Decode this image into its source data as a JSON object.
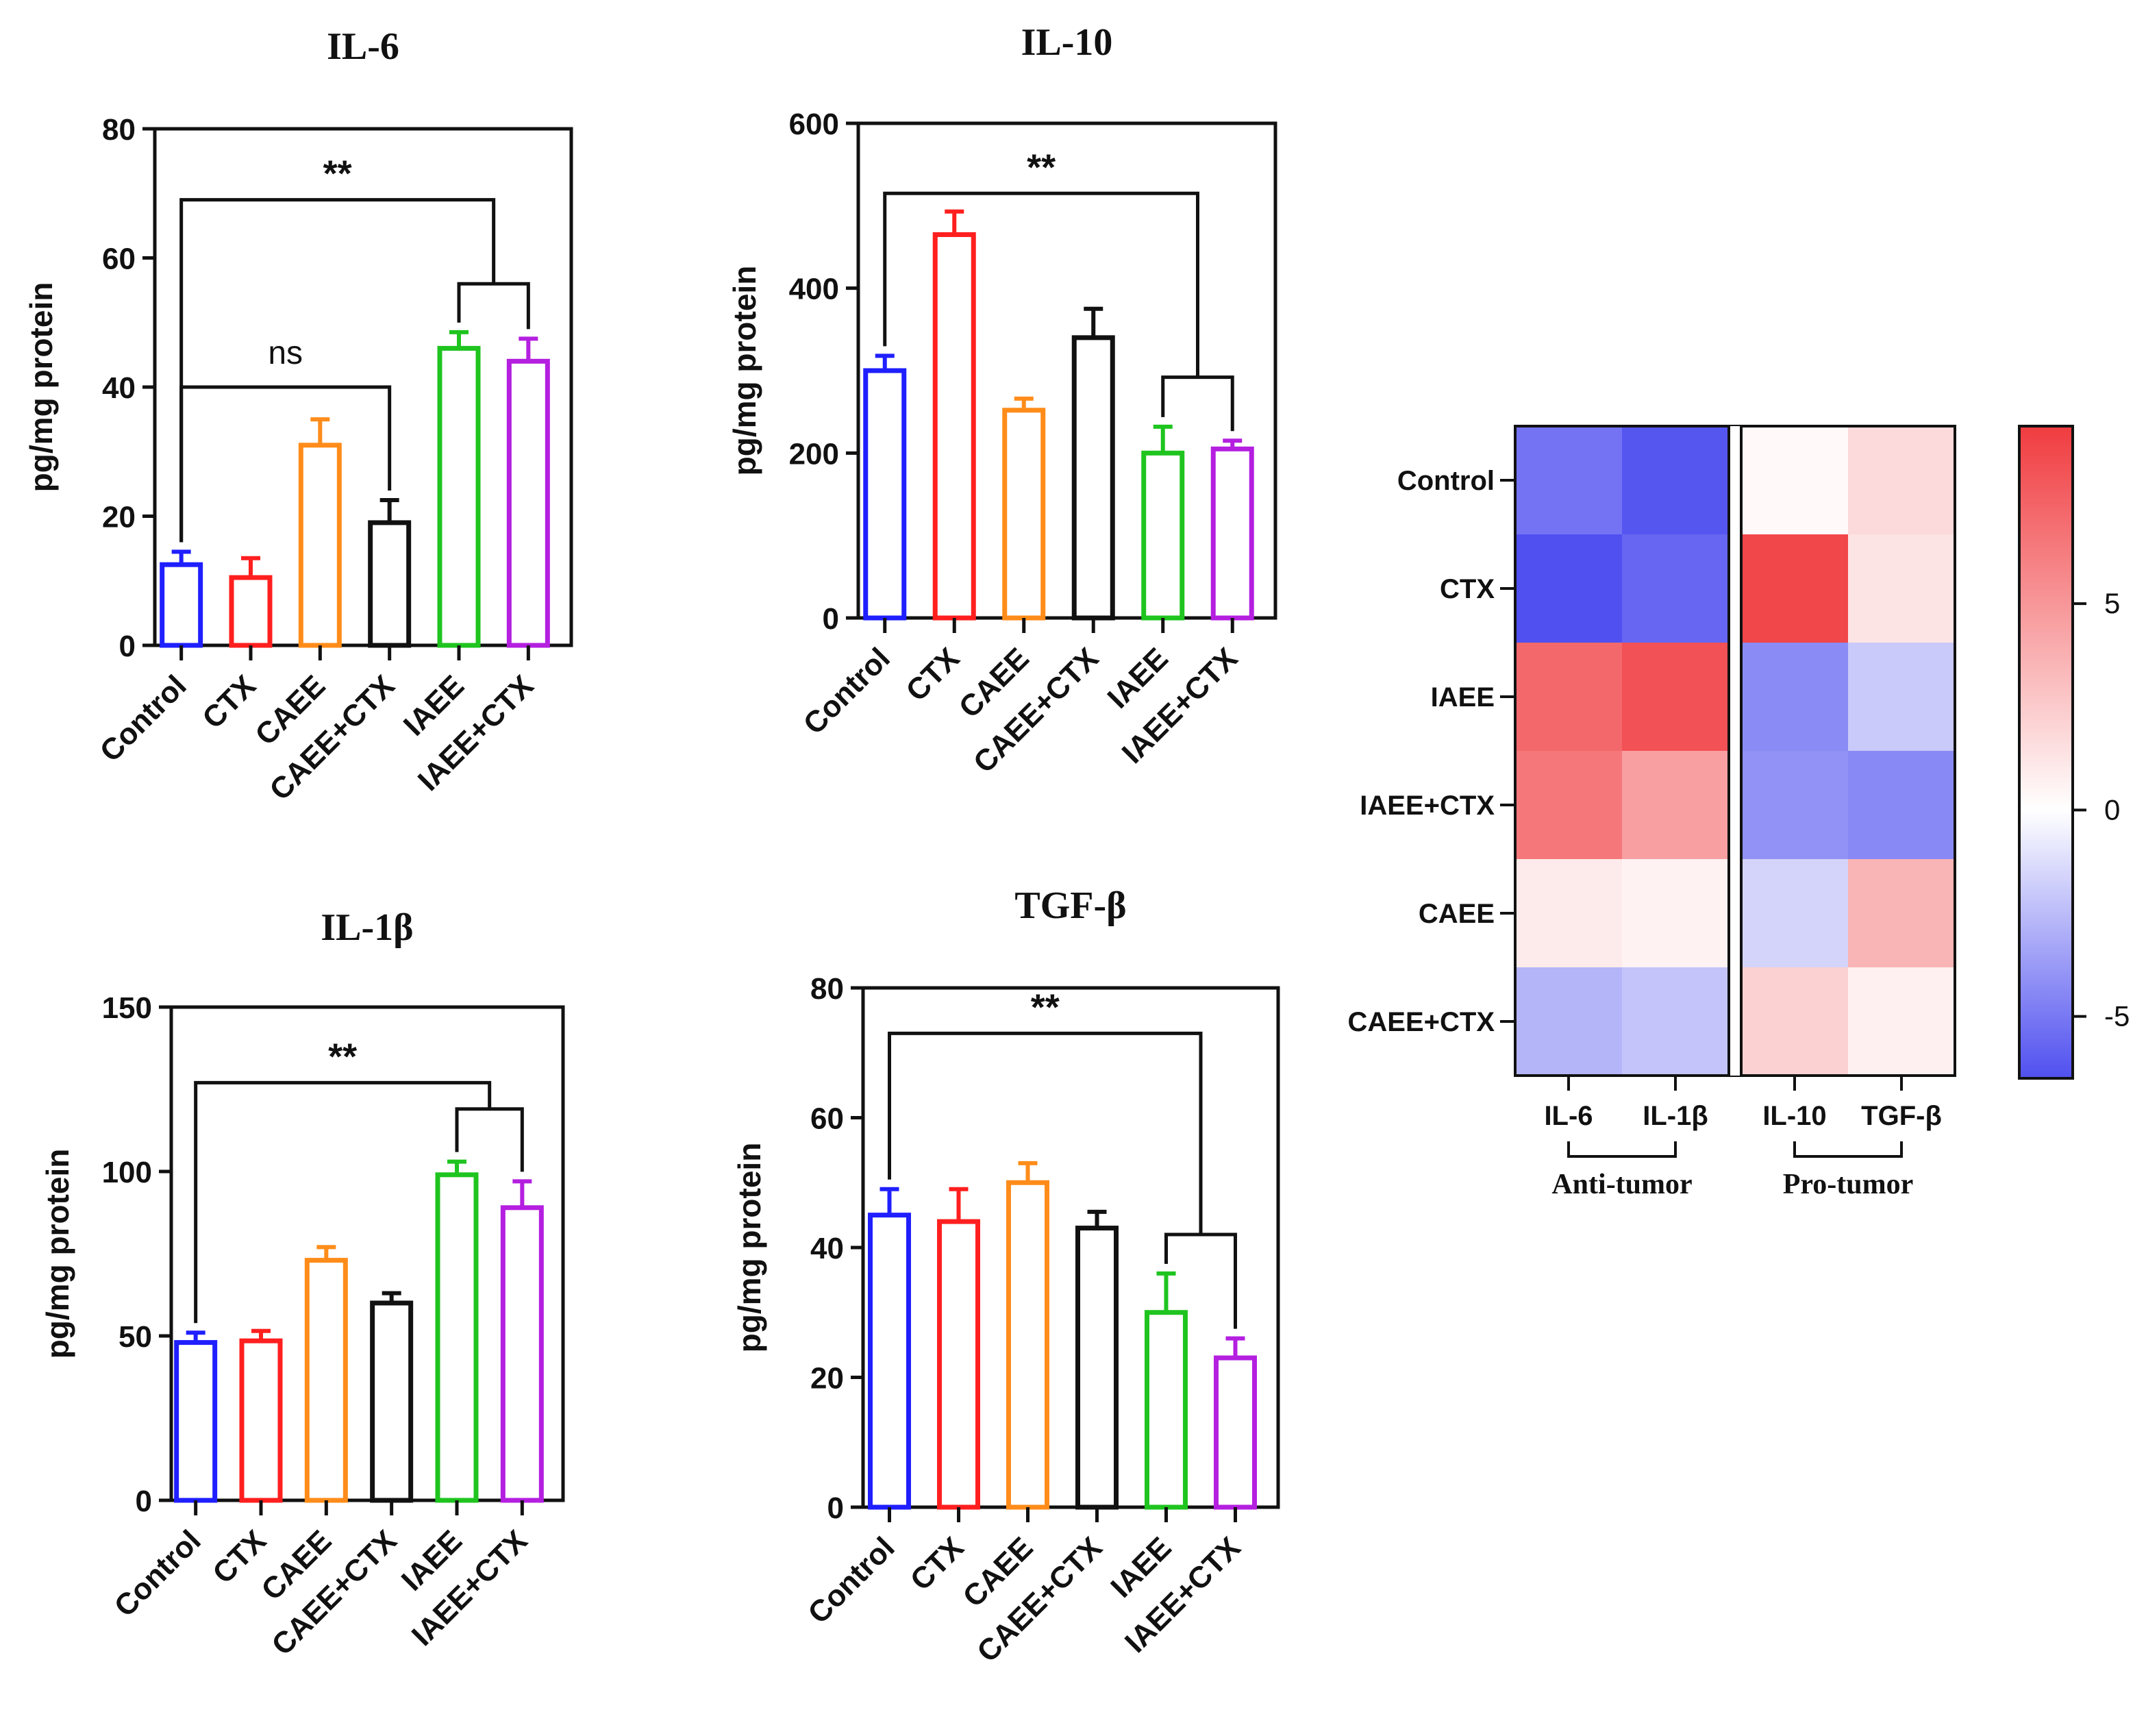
{
  "colors": {
    "Control": "#1f1fff",
    "CTX": "#ff1f1f",
    "CAEE": "#ff8c1a",
    "CAEE+CTX": "#111111",
    "IAEE": "#1fc41f",
    "IAEE+CTX": "#b41fe0"
  },
  "chart_data": [
    {
      "id": "il6",
      "type": "bar",
      "title": "IL-6",
      "ylabel": "pg/mg protein",
      "xlabel": "",
      "categories": [
        "Control",
        "CTX",
        "CAEE",
        "CAEE+CTX",
        "IAEE",
        "IAEE+CTX"
      ],
      "values": [
        12.5,
        10.5,
        31,
        19,
        46,
        44
      ],
      "errors": [
        2,
        3,
        4,
        3.5,
        2.5,
        3.5
      ],
      "ylim": [
        0,
        80
      ],
      "yticks": [
        0,
        20,
        40,
        60,
        80
      ],
      "annotations": [
        {
          "text": "**",
          "label": "significance"
        },
        {
          "text": "ns",
          "label": "not-significant"
        }
      ]
    },
    {
      "id": "il10",
      "type": "bar",
      "title": "IL-10",
      "ylabel": "pg/mg protein",
      "xlabel": "",
      "categories": [
        "Control",
        "CTX",
        "CAEE",
        "CAEE+CTX",
        "IAEE",
        "IAEE+CTX"
      ],
      "values": [
        300,
        465,
        252,
        340,
        200,
        205
      ],
      "errors": [
        18,
        28,
        14,
        35,
        32,
        10
      ],
      "ylim": [
        0,
        600
      ],
      "yticks": [
        0,
        200,
        400,
        600
      ],
      "annotations": [
        {
          "text": "**",
          "label": "significance"
        }
      ]
    },
    {
      "id": "il1b",
      "type": "bar",
      "title": "IL-1β",
      "ylabel": "pg/mg protein",
      "xlabel": "",
      "categories": [
        "Control",
        "CTX",
        "CAEE",
        "CAEE+CTX",
        "IAEE",
        "IAEE+CTX"
      ],
      "values": [
        48,
        48.5,
        73,
        60,
        99,
        89
      ],
      "errors": [
        3,
        3,
        4,
        3,
        4,
        8
      ],
      "ylim": [
        0,
        150
      ],
      "yticks": [
        0,
        50,
        100,
        150
      ],
      "annotations": [
        {
          "text": "**",
          "label": "significance"
        }
      ]
    },
    {
      "id": "tgfb",
      "type": "bar",
      "title": "TGF-β",
      "ylabel": "pg/mg protein",
      "xlabel": "",
      "categories": [
        "Control",
        "CTX",
        "CAEE",
        "CAEE+CTX",
        "IAEE",
        "IAEE+CTX"
      ],
      "values": [
        45,
        44,
        50,
        43,
        30,
        23
      ],
      "errors": [
        4,
        5,
        3,
        2.5,
        6,
        3
      ],
      "ylim": [
        0,
        80
      ],
      "yticks": [
        0,
        20,
        40,
        60,
        80
      ],
      "annotations": [
        {
          "text": "**",
          "label": "significance"
        }
      ]
    },
    {
      "id": "heatmap",
      "type": "heatmap",
      "rows": [
        "Control",
        "CTX",
        "IAEE",
        "IAEE+CTX",
        "CAEE",
        "CAEE+CTX"
      ],
      "columns": [
        "IL-6",
        "IL-1β",
        "IL-10",
        "TGF-β"
      ],
      "values": [
        [
          -5.2,
          -6.3,
          0.3,
          1.8
        ],
        [
          -6.5,
          -5.7,
          8.8,
          1.3
        ],
        [
          7.2,
          8.3,
          -4.3,
          -2.0
        ],
        [
          6.5,
          4.6,
          -4.1,
          -4.4
        ],
        [
          1.0,
          0.6,
          -1.6,
          3.6
        ],
        [
          -2.8,
          -2.2,
          2.2,
          0.7
        ]
      ],
      "groups": [
        {
          "label": "Anti-tumor",
          "columns": [
            "IL-6",
            "IL-1β"
          ]
        },
        {
          "label": "Pro-tumor",
          "columns": [
            "IL-10",
            "TGF-β"
          ]
        }
      ],
      "colorbar": {
        "range": [
          -6.5,
          9.3
        ],
        "ticks": [
          -5,
          0,
          5
        ],
        "tick_labels": [
          "-5",
          "0",
          "5"
        ]
      }
    }
  ]
}
